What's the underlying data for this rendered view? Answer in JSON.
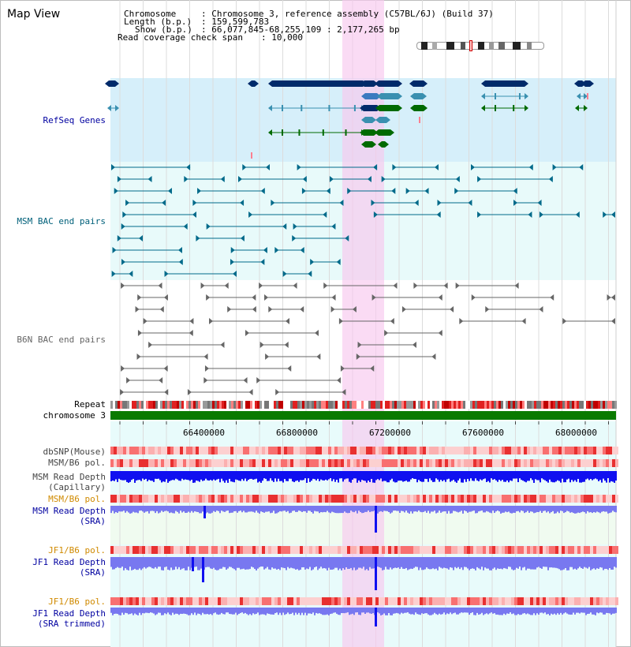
{
  "title": "Map View",
  "info": {
    "chromosome_label": "Chromosome",
    "chromosome_value": ": Chromosome 3, reference assembly (C57BL/6J) (Build 37)",
    "length_label": "Length (b.p.)",
    "length_value": ": 159,599,783",
    "show_label": "Show (b.p.)",
    "show_value": ": 66,077,845-68,255,109 : 2,177,265 bp",
    "span_label": "Read coverage check span",
    "span_value": ": 10,000"
  },
  "tracks": {
    "refseq": "RefSeq Genes",
    "msm_bac": "MSM BAC end pairs",
    "b6n_bac": "B6N BAC end pairs",
    "repeat": "Repeat",
    "chromosome": "chromosome 3",
    "dbsnp": "dbSNP(Mouse)",
    "msm_b6_pol_1": "MSM/B6 pol.",
    "msm_read_depth_cap_1": "MSM Read Depth",
    "msm_read_depth_cap_2": "(Capillary)",
    "msm_b6_pol_2": "MSM/B6 pol.",
    "msm_read_depth_sra_1": "MSM Read Depth",
    "msm_read_depth_sra_2": "(SRA)",
    "jf1_b6_pol_1": "JF1/B6 pol.",
    "jf1_read_depth_sra_1": "JF1 Read Depth",
    "jf1_read_depth_sra_2": "(SRA)",
    "jf1_b6_pol_2": "JF1/B6 pol.",
    "jf1_read_depth_trim_1": "JF1 Read Depth",
    "jf1_read_depth_trim_2": "(SRA trimmed)"
  },
  "axis_ticks": [
    "66400000",
    "66800000",
    "67200000",
    "67600000",
    "68000000"
  ],
  "colors": {
    "refseq_bg": "#d6effa",
    "bac_bg": "#e8fafa",
    "lower_bg": "#e8fbfb",
    "msm_gene": "#006a8a",
    "gene_dark": "#002a6a",
    "gene_green": "#006a00",
    "b6n_pair": "#666666",
    "depth_blue": "#1010f0",
    "depth_light": "#7878f0",
    "label_blue": "#0000a0",
    "label_orange": "#d08a00",
    "label_teal": "#00607a",
    "highlight": "#f8c8ee",
    "chromosome": "#0a7a00"
  }
}
